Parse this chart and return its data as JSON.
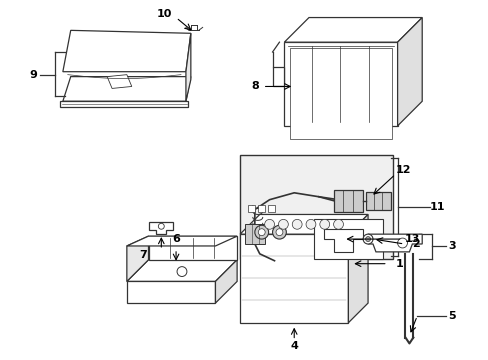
{
  "background_color": "#ffffff",
  "line_color": "#333333",
  "figsize": [
    4.89,
    3.6
  ],
  "dpi": 100,
  "label_fontsize": 8,
  "label_fontweight": "bold"
}
